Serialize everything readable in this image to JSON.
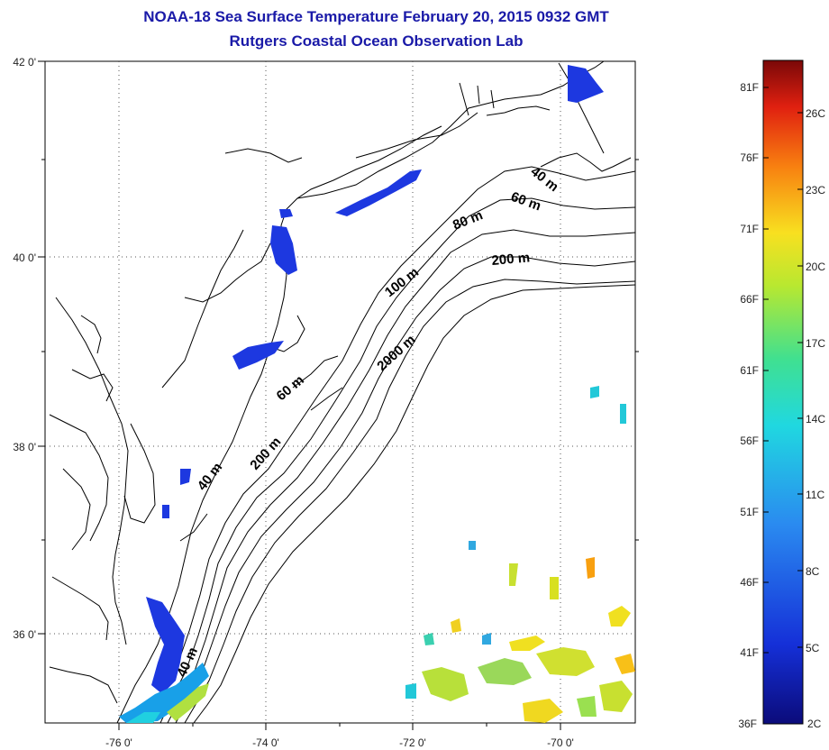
{
  "title_line1": "NOAA-18 Sea Surface Temperature February 20, 2015 0932 GMT",
  "title_line2": "Rutgers Coastal Ocean Observation Lab",
  "lon_ticks": [
    "-76 0'",
    "-74 0'",
    "-72 0'",
    "-70 0'"
  ],
  "lat_ticks": [
    "42 0'",
    "40 0'",
    "38 0'",
    "36 0'"
  ],
  "contour_labels": [
    "40 m",
    "60 m",
    "80 m",
    "200 m",
    "100 m",
    "2000 m",
    "60 m",
    "200 m",
    "40 m",
    "40 m"
  ],
  "colorbar": {
    "fahrenheit_labels": [
      "81F",
      "76F",
      "71F",
      "66F",
      "61F",
      "56F",
      "51F",
      "46F",
      "41F",
      "36F"
    ],
    "celsius_labels": [
      "26C",
      "23C",
      "20C",
      "17C",
      "14C",
      "11C",
      "8C",
      "5C",
      "2C"
    ],
    "colors": [
      "#0b1a8a",
      "#1a3fd8",
      "#2a8af0",
      "#22d0e0",
      "#3ee0a0",
      "#a0e040",
      "#f0e020",
      "#f8a010",
      "#e83010",
      "#8a0a0a"
    ]
  }
}
